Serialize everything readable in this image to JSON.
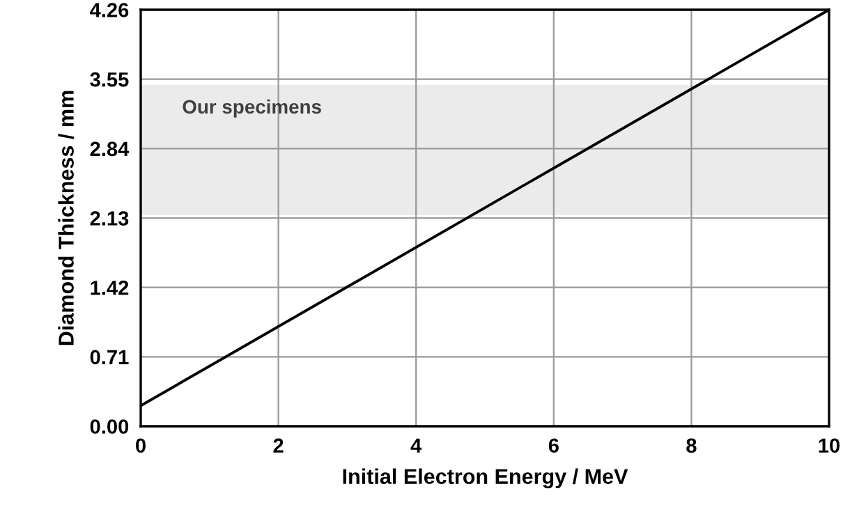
{
  "chart_data": {
    "type": "line",
    "xlabel": "Initial Electron Energy / MeV",
    "ylabel": "Diamond Thickness / mm",
    "x": [
      0,
      10
    ],
    "series": [
      {
        "color": "#000000",
        "values": [
          0.21,
          4.26
        ]
      }
    ],
    "xlim": [
      0,
      10
    ],
    "xticks": [
      0,
      2,
      4,
      6,
      8,
      10
    ],
    "ylim": [
      0,
      4.26
    ],
    "yticks": [
      {
        "value": 0,
        "label": "0.00"
      },
      0.71,
      1.42,
      2.13,
      2.84,
      3.55,
      4.26
    ],
    "bands": [
      {
        "axis": "y",
        "from": 2.16,
        "to": 3.49,
        "label": "Our specimens",
        "color": "#ebebeb"
      }
    ],
    "grid": true,
    "marker": "none",
    "line_style": "solid"
  }
}
